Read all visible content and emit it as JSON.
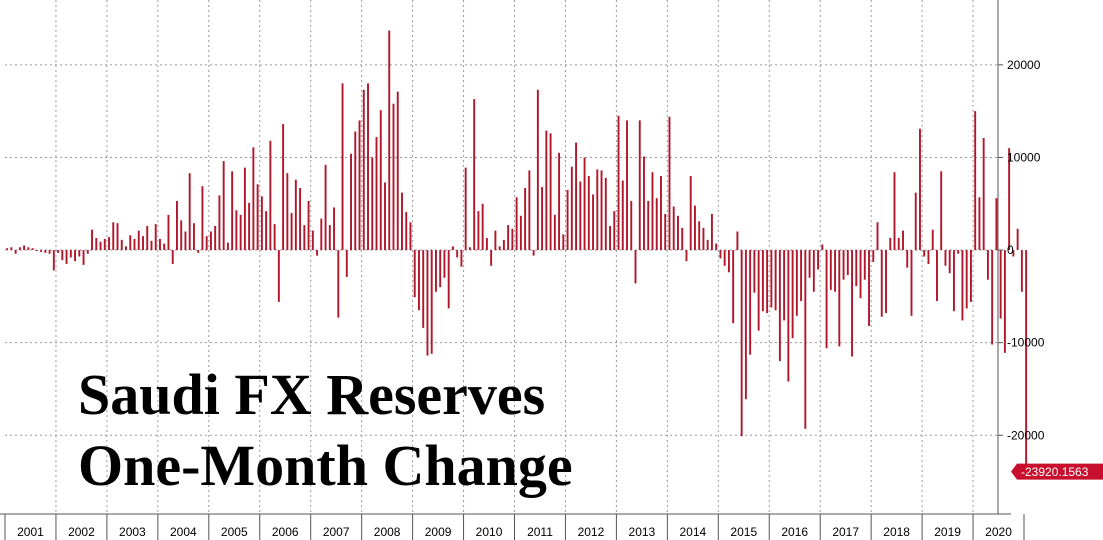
{
  "chart_data": {
    "type": "bar",
    "title_lines": [
      "Saudi FX Reserves",
      "One-Month Change"
    ],
    "x_ticks": [
      "2001",
      "2002",
      "2003",
      "2004",
      "2005",
      "2006",
      "2007",
      "2008",
      "2009",
      "2010",
      "2011",
      "2012",
      "2013",
      "2014",
      "2015",
      "2016",
      "2017",
      "2018",
      "2019",
      "2020"
    ],
    "y_ticks": [
      "20000",
      "10000",
      "0",
      "-10000",
      "-20000"
    ],
    "ylim": [
      -28500,
      27000
    ],
    "grid": true,
    "bar_color": "#b0172b",
    "last_value_label": "-23920.1563",
    "start": "2001-01",
    "values": [
      200,
      300,
      -400,
      300,
      500,
      300,
      200,
      -100,
      -200,
      -300,
      -400,
      -2200,
      -300,
      -1100,
      -1500,
      -800,
      -1200,
      -700,
      -1600,
      -400,
      2200,
      1300,
      900,
      1200,
      1400,
      3000,
      2900,
      1100,
      400,
      1600,
      1200,
      2100,
      1500,
      2600,
      1000,
      2800,
      1200,
      700,
      3800,
      -1500,
      5300,
      3200,
      2000,
      8300,
      2900,
      -300,
      6900,
      1500,
      2000,
      2600,
      5900,
      9600,
      800,
      8500,
      4300,
      3800,
      8900,
      5100,
      11100,
      7100,
      5800,
      4200,
      11800,
      2800,
      -5600,
      13600,
      8300,
      4000,
      7600,
      6700,
      2700,
      5300,
      2100,
      -600,
      3400,
      9200,
      2700,
      4600,
      -7300,
      18000,
      -2900,
      10400,
      12800,
      14000,
      17300,
      18000,
      10000,
      12200,
      15100,
      7300,
      23700,
      15800,
      17100,
      6200,
      4100,
      3000,
      -5100,
      -6500,
      -8400,
      -11400,
      -11200,
      -4500,
      -4000,
      -3000,
      -6300,
      400,
      -800,
      -1800,
      8900,
      300,
      16300,
      4200,
      5000,
      1300,
      -1700,
      2100,
      400,
      1100,
      2700,
      2300,
      5700,
      3700,
      6700,
      8600,
      -600,
      17300,
      6800,
      12900,
      12600,
      3800,
      10500,
      1700,
      6500,
      9000,
      11600,
      7400,
      10000,
      8000,
      6000,
      8700,
      8600,
      7800,
      2600,
      4200,
      14500,
      7500,
      14000,
      5300,
      -3600,
      14000,
      10100,
      5300,
      8400,
      5600,
      8000,
      3900,
      14400,
      4700,
      3700,
      2400,
      -1200,
      8000,
      4800,
      3100,
      2400,
      1100,
      3900,
      700,
      -900,
      -1700,
      -2400,
      -7900,
      2000,
      -20100,
      -16100,
      -11300,
      -4600,
      -8700,
      -6600,
      -6800,
      -6200,
      -6500,
      -12000,
      -7600,
      -14200,
      -9500,
      -7100,
      -5500,
      -19300,
      -3000,
      -4500,
      -2100,
      600,
      -10600,
      -4300,
      -4500,
      -10400,
      -3200,
      -2700,
      -11500,
      -3900,
      -5200,
      -3200,
      -8200,
      -1300,
      3000,
      -7200,
      -6800,
      1300,
      8400,
      1300,
      2100,
      -1900,
      -7100,
      6200,
      13100,
      -700,
      -1500,
      2200,
      -5500,
      8500,
      -1700,
      -2500,
      -6600,
      -400,
      -7600,
      -6300,
      -5600,
      15000,
      5700,
      12100,
      -3200,
      -10200,
      5600,
      -7400,
      -11100,
      11000,
      -700,
      2300,
      -4500,
      -23920.1563
    ]
  }
}
